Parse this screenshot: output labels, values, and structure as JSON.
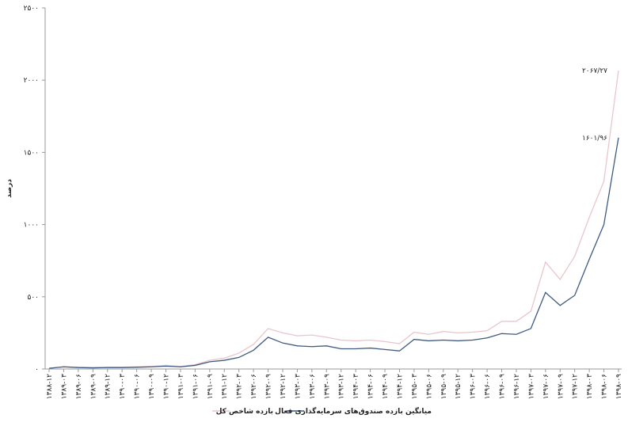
{
  "chart_data": {
    "type": "line",
    "y_label": "درصد",
    "categories": [
      "۱۳۸۸-۱۲",
      "۱۳۸۹-۰۳",
      "۱۳۸۹-۰۶",
      "۱۳۸۹-۰۹",
      "۱۳۸۹-۱۲",
      "۱۳۹۰-۰۳",
      "۱۳۹۰-۰۶",
      "۱۳۹۰-۰۹",
      "۱۳۹۰-۱۲",
      "۱۳۹۱-۰۳",
      "۱۳۹۱-۰۶",
      "۱۳۹۱-۰۹",
      "۱۳۹۱-۱۲",
      "۱۳۹۲-۰۳",
      "۱۳۹۲-۰۶",
      "۱۳۹۲-۰۹",
      "۱۳۹۲-۱۲",
      "۱۳۹۳-۰۳",
      "۱۳۹۳-۰۶",
      "۱۳۹۳-۰۹",
      "۱۳۹۳-۱۲",
      "۱۳۹۴-۰۳",
      "۱۳۹۴-۰۶",
      "۱۳۹۴-۰۹",
      "۱۳۹۴-۱۲",
      "۱۳۹۵-۰۳",
      "۱۳۹۵-۰۶",
      "۱۳۹۵-۰۹",
      "۱۳۹۵-۱۲",
      "۱۳۹۶-۰۳",
      "۱۳۹۶-۰۶",
      "۱۳۹۶-۰۹",
      "۱۳۹۶-۱۲",
      "۱۳۹۷-۰۳",
      "۱۳۹۷-۰۶",
      "۱۳۹۷-۰۹",
      "۱۳۹۷-۱۲",
      "۱۳۹۸-۰۳",
      "۱۳۹۸-۰۶",
      "۱۳۹۸-۰۹"
    ],
    "series": [
      {
        "name": "بازده شاخص کل",
        "color": "#e9c6cb",
        "values": [
          5,
          15,
          12,
          10,
          12,
          12,
          15,
          18,
          25,
          18,
          30,
          60,
          75,
          110,
          170,
          280,
          250,
          230,
          235,
          220,
          200,
          195,
          200,
          190,
          175,
          255,
          240,
          260,
          250,
          255,
          265,
          330,
          330,
          400,
          740,
          620,
          780,
          1050,
          1300,
          2067.27
        ],
        "value_labels": [
          null,
          null,
          null,
          null,
          null,
          null,
          null,
          null,
          null,
          null,
          null,
          null,
          null,
          null,
          null,
          null,
          null,
          null,
          null,
          null,
          null,
          null,
          null,
          null,
          null,
          null,
          null,
          null,
          null,
          null,
          null,
          null,
          null,
          null,
          null,
          null,
          null,
          null,
          null,
          "۲۰۶۷/۲۷"
        ]
      },
      {
        "name": "میانگین بازده صندوق‌های سرمایه‌گذاری فعال",
        "color": "#3f5a82",
        "values": [
          5,
          15,
          10,
          8,
          10,
          10,
          12,
          15,
          20,
          15,
          25,
          50,
          60,
          80,
          130,
          220,
          180,
          160,
          155,
          160,
          140,
          140,
          145,
          135,
          125,
          205,
          195,
          200,
          195,
          200,
          215,
          245,
          240,
          280,
          530,
          440,
          510,
          760,
          1000,
          1601.96
        ],
        "value_labels": [
          null,
          null,
          null,
          null,
          null,
          null,
          null,
          null,
          null,
          null,
          null,
          null,
          null,
          null,
          null,
          null,
          null,
          null,
          null,
          null,
          null,
          null,
          null,
          null,
          null,
          null,
          null,
          null,
          null,
          null,
          null,
          null,
          null,
          null,
          null,
          null,
          null,
          null,
          null,
          "۱۶۰۱/۹۶"
        ]
      }
    ],
    "ylim": [
      0,
      2500
    ],
    "yticks": [
      {
        "value": 0,
        "label": "۰"
      },
      {
        "value": 500,
        "label": "۵۰۰"
      },
      {
        "value": 1000,
        "label": "۱۰۰۰"
      },
      {
        "value": 1500,
        "label": "۱۵۰۰"
      },
      {
        "value": 2000,
        "label": "۲۰۰۰"
      },
      {
        "value": 2500,
        "label": "۲۵۰۰"
      }
    ]
  }
}
